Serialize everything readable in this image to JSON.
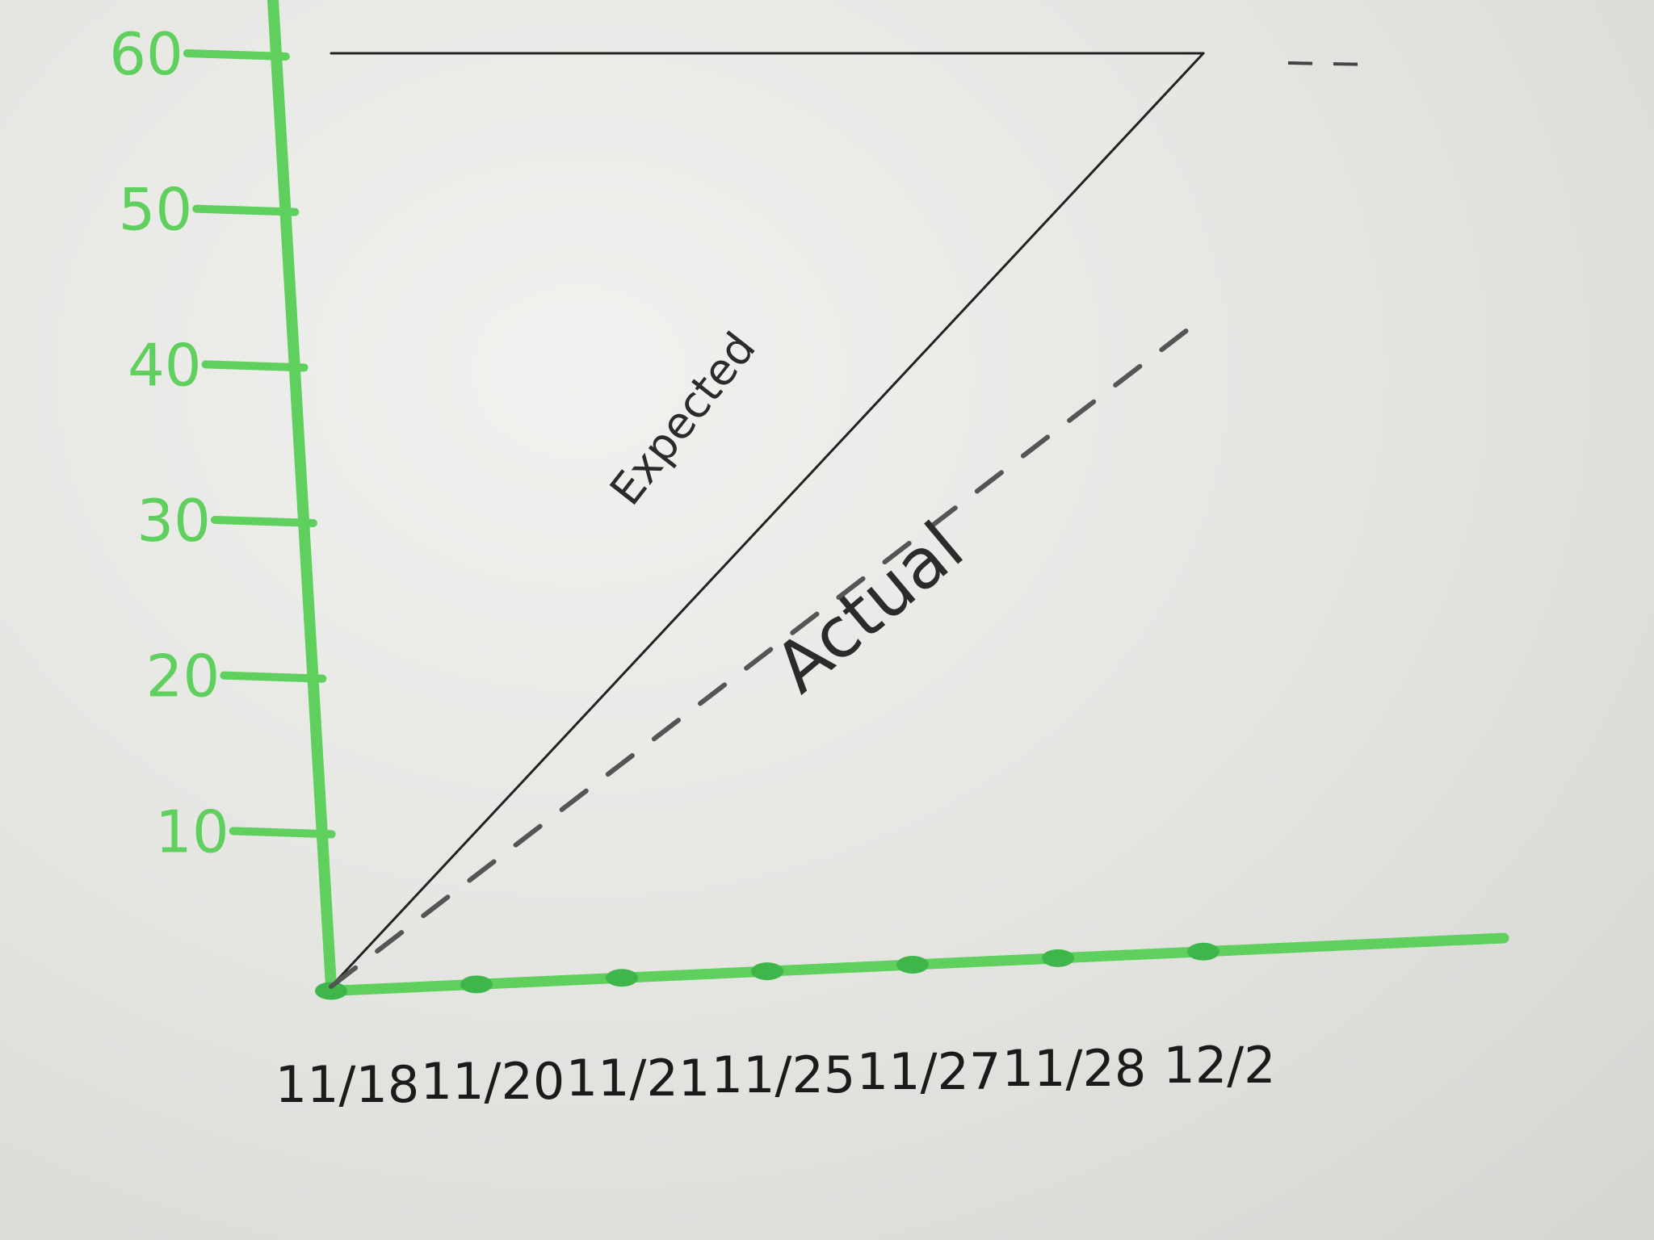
{
  "chart_data": {
    "type": "line",
    "title": "",
    "xlabel": "",
    "ylabel": "",
    "categories": [
      "11/18",
      "11/20",
      "11/21",
      "11/25",
      "11/27",
      "11/28",
      "12/2"
    ],
    "y_ticks": [
      "10",
      "20",
      "30",
      "40",
      "50",
      "60"
    ],
    "ylim": [
      0,
      60
    ],
    "grid": false,
    "series": [
      {
        "name": "Expected",
        "style": "solid",
        "color": "#222222",
        "points": [
          {
            "x": "11/18",
            "y": 0
          },
          {
            "x": "12/2",
            "y": 60
          }
        ]
      },
      {
        "name": "Actual",
        "style": "dashed",
        "color": "#555555",
        "points": [
          {
            "x": "11/18",
            "y": 0
          },
          {
            "x": "12/2",
            "y": 43
          }
        ]
      },
      {
        "name": "",
        "style": "solid",
        "color": "#222222",
        "points": [
          {
            "x": "11/18",
            "y": 60
          },
          {
            "x": "12/2",
            "y": 60
          }
        ]
      }
    ],
    "axis_color": "#5fcf5d"
  }
}
